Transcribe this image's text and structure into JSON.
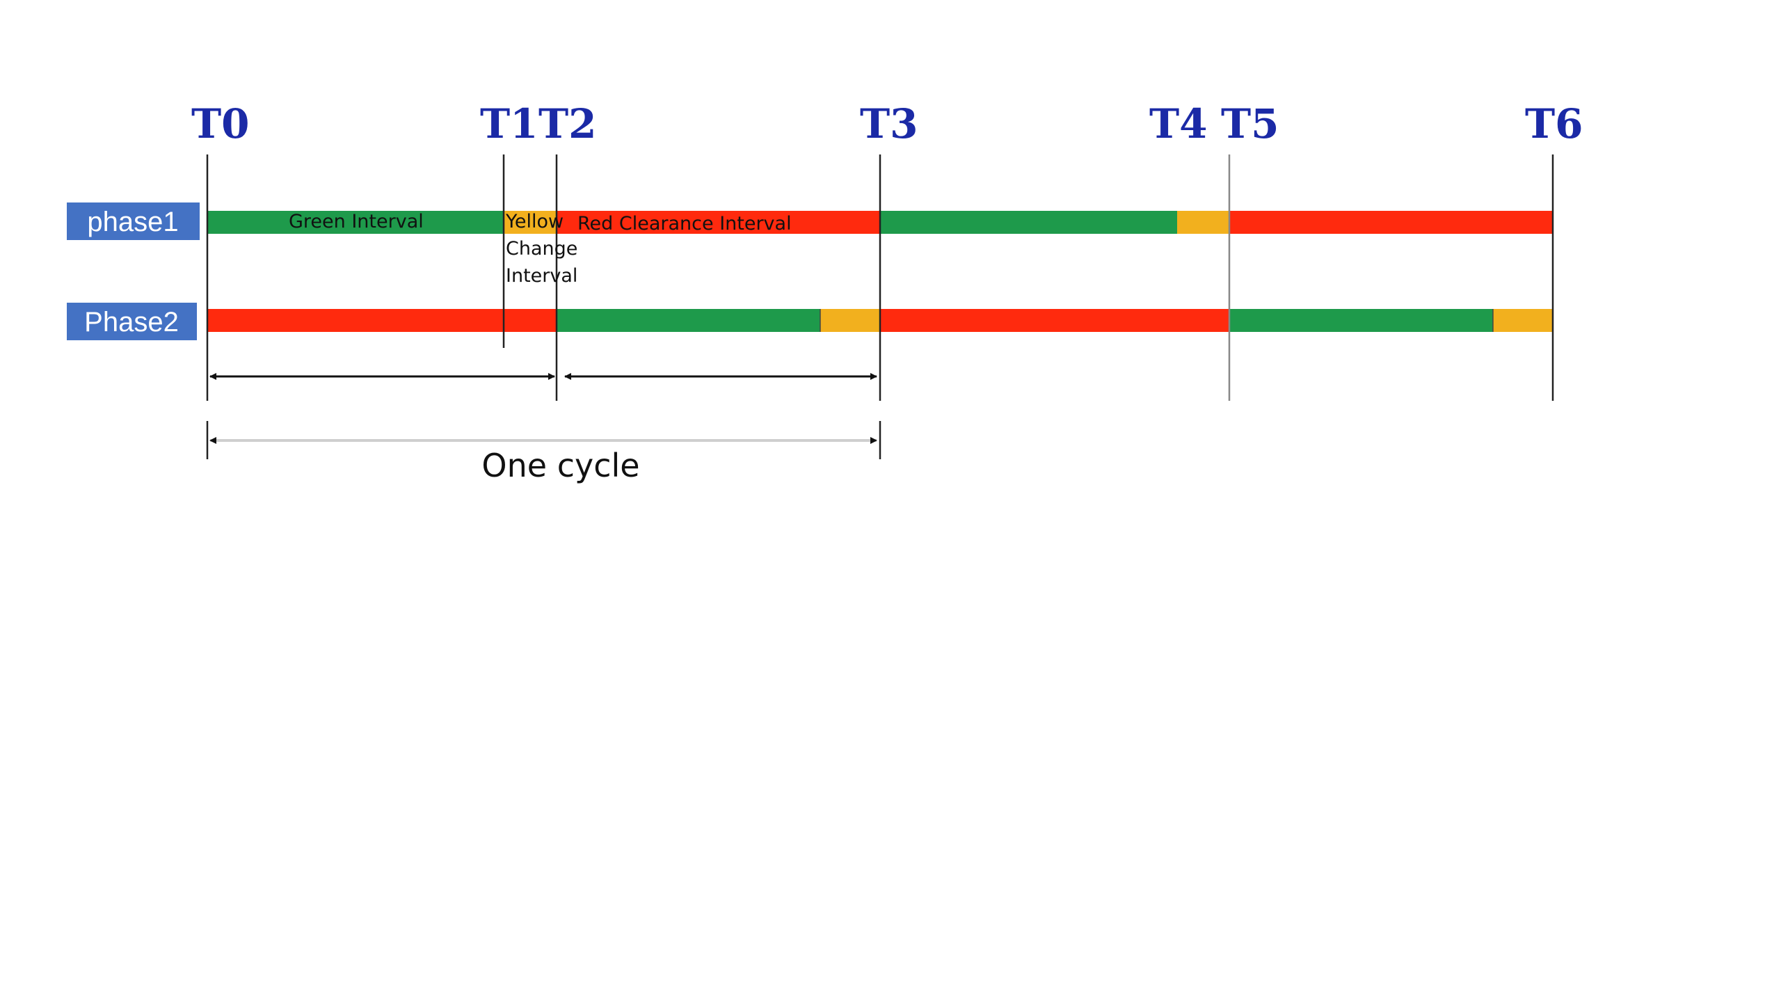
{
  "timeline": {
    "ticks": [
      "T0",
      "T1",
      "T2",
      "T3",
      "T4",
      "T5",
      "T6"
    ]
  },
  "phases": [
    {
      "label": "phase1",
      "segments": [
        {
          "from": "T0",
          "to": "T1",
          "state": "green"
        },
        {
          "from": "T1",
          "to": "T2",
          "state": "yellow"
        },
        {
          "from": "T2",
          "to": "T3",
          "state": "red"
        },
        {
          "from": "T3",
          "to": "T4",
          "state": "green"
        },
        {
          "from": "T4",
          "to": "T5",
          "state": "yellow"
        },
        {
          "from": "T5",
          "to": "T6",
          "state": "red"
        }
      ]
    },
    {
      "label": "Phase2",
      "segments": [
        {
          "from": "T0",
          "to": "T2",
          "state": "red"
        },
        {
          "from": "T2",
          "to": "T3",
          "state": "green",
          "yellow_tail_fraction": 0.185
        },
        {
          "from": "T3",
          "to": "T5",
          "state": "red"
        },
        {
          "from": "T5",
          "to": "T6",
          "state": "green",
          "yellow_tail_fraction": 0.185
        }
      ]
    }
  ],
  "annotations": {
    "green_interval": "Green Interval",
    "yellow_change_interval": [
      "Yellow",
      "Change",
      "Interval"
    ],
    "red_clearance_interval": "Red Clearance Interval",
    "one_cycle": "One cycle"
  },
  "colors": {
    "green": "#1e9a4b",
    "yellow": "#f2b01e",
    "red": "#ff2a0e",
    "tick_label": "#1b2aa6",
    "phase_label_bg": "#4472c4"
  }
}
